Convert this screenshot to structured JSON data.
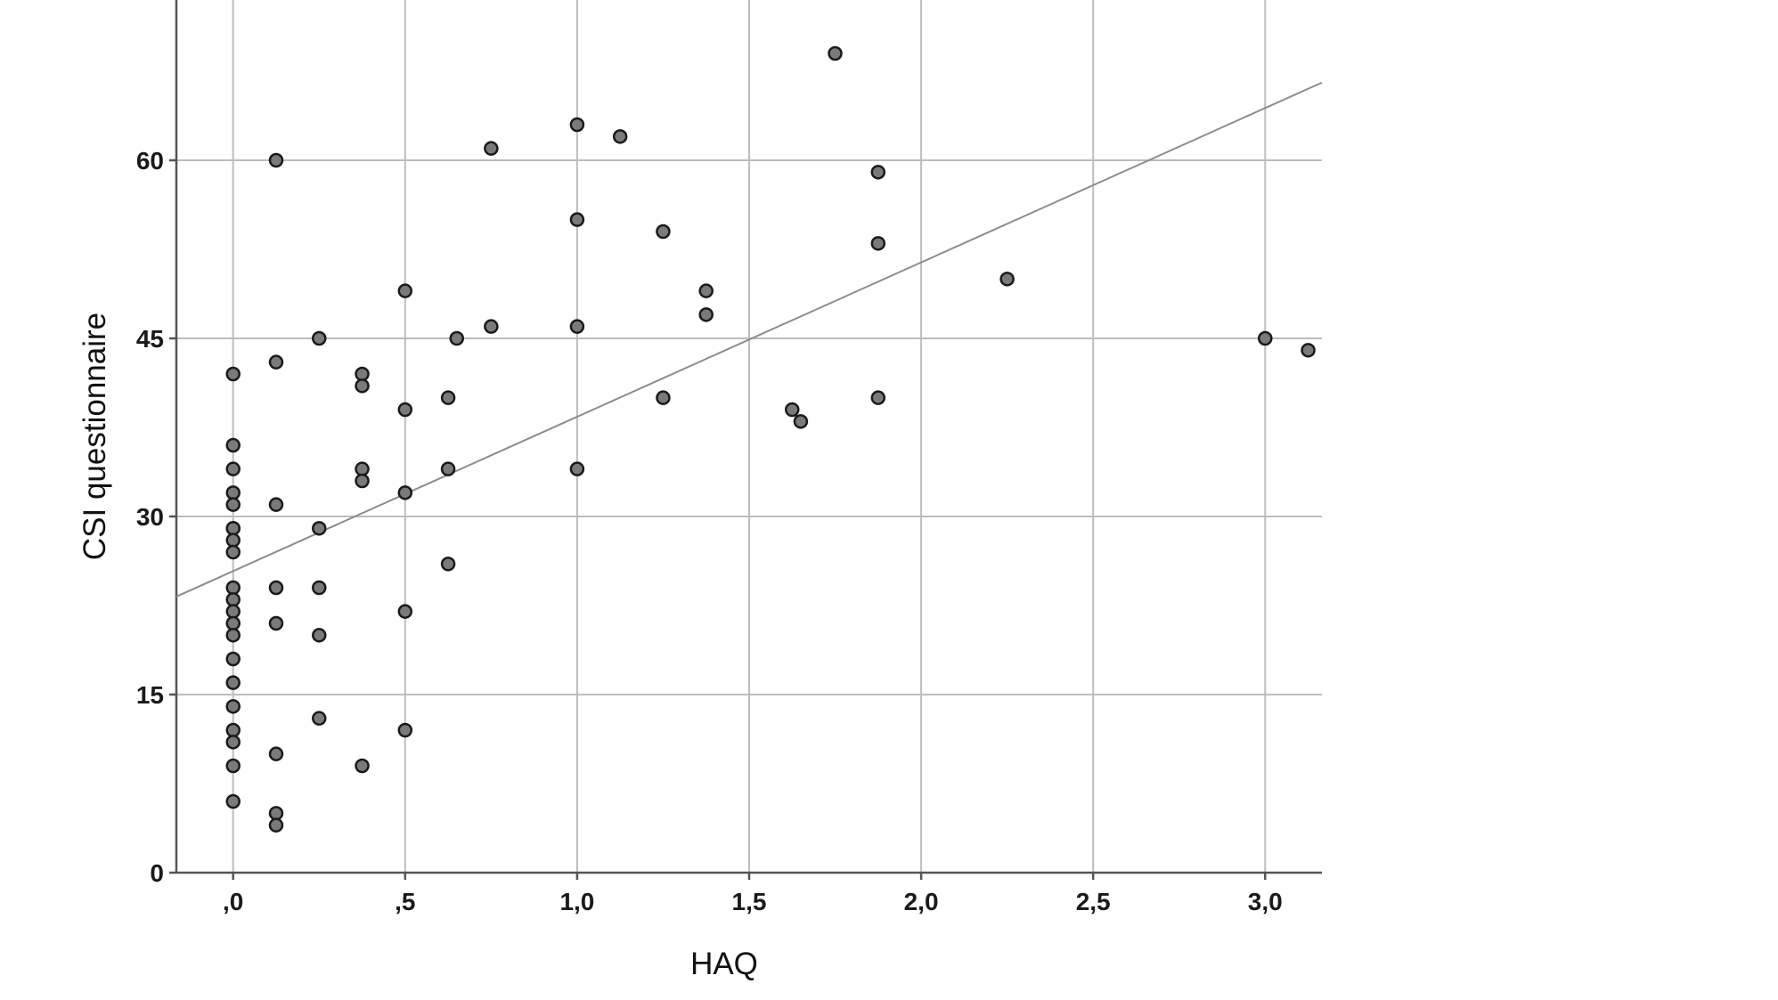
{
  "chart_data": {
    "type": "scatter",
    "xlabel": "HAQ",
    "ylabel": "CSI questionnaire",
    "xlim": [
      -0.165,
      3.165
    ],
    "ylim": [
      0,
      73.5
    ],
    "x_ticks": [
      0,
      0.5,
      1.0,
      1.5,
      2.0,
      2.5,
      3.0
    ],
    "x_tick_labels": [
      ",0",
      ",5",
      "1,0",
      "1,5",
      "2,0",
      "2,5",
      "3,0"
    ],
    "y_ticks": [
      0,
      15,
      30,
      45,
      60
    ],
    "y_tick_labels": [
      "0",
      "15",
      "30",
      "45",
      "60"
    ],
    "grid": true,
    "fit_line": {
      "intercept": 25.4,
      "slope": 13.0
    },
    "points": [
      [
        0,
        42
      ],
      [
        0,
        36
      ],
      [
        0,
        34
      ],
      [
        0,
        32
      ],
      [
        0,
        31
      ],
      [
        0,
        29
      ],
      [
        0,
        29
      ],
      [
        0,
        28
      ],
      [
        0,
        27
      ],
      [
        0,
        24
      ],
      [
        0,
        23
      ],
      [
        0,
        22
      ],
      [
        0,
        21
      ],
      [
        0,
        20
      ],
      [
        0,
        18
      ],
      [
        0,
        16
      ],
      [
        0,
        14
      ],
      [
        0,
        12
      ],
      [
        0,
        11
      ],
      [
        0,
        9
      ],
      [
        0,
        6
      ],
      [
        0.125,
        60
      ],
      [
        0.125,
        43
      ],
      [
        0.125,
        31
      ],
      [
        0.125,
        24
      ],
      [
        0.125,
        21
      ],
      [
        0.125,
        10
      ],
      [
        0.125,
        5
      ],
      [
        0.125,
        4
      ],
      [
        0.25,
        45
      ],
      [
        0.25,
        29
      ],
      [
        0.25,
        24
      ],
      [
        0.25,
        20
      ],
      [
        0.25,
        13
      ],
      [
        0.375,
        42
      ],
      [
        0.375,
        41
      ],
      [
        0.375,
        34
      ],
      [
        0.375,
        33
      ],
      [
        0.375,
        9
      ],
      [
        0.5,
        49
      ],
      [
        0.5,
        39
      ],
      [
        0.5,
        32
      ],
      [
        0.5,
        22
      ],
      [
        0.5,
        12
      ],
      [
        0.625,
        40
      ],
      [
        0.625,
        34
      ],
      [
        0.625,
        26
      ],
      [
        0.65,
        45
      ],
      [
        0.75,
        61
      ],
      [
        0.75,
        46
      ],
      [
        1.0,
        63
      ],
      [
        1.0,
        55
      ],
      [
        1.0,
        46
      ],
      [
        1.0,
        34
      ],
      [
        1.125,
        62
      ],
      [
        1.25,
        54
      ],
      [
        1.25,
        40
      ],
      [
        1.375,
        49
      ],
      [
        1.375,
        47
      ],
      [
        1.625,
        39
      ],
      [
        1.65,
        38
      ],
      [
        1.75,
        69
      ],
      [
        1.875,
        59
      ],
      [
        1.875,
        53
      ],
      [
        1.875,
        40
      ],
      [
        2.25,
        50
      ],
      [
        3.0,
        45
      ],
      [
        3.125,
        44
      ]
    ]
  }
}
